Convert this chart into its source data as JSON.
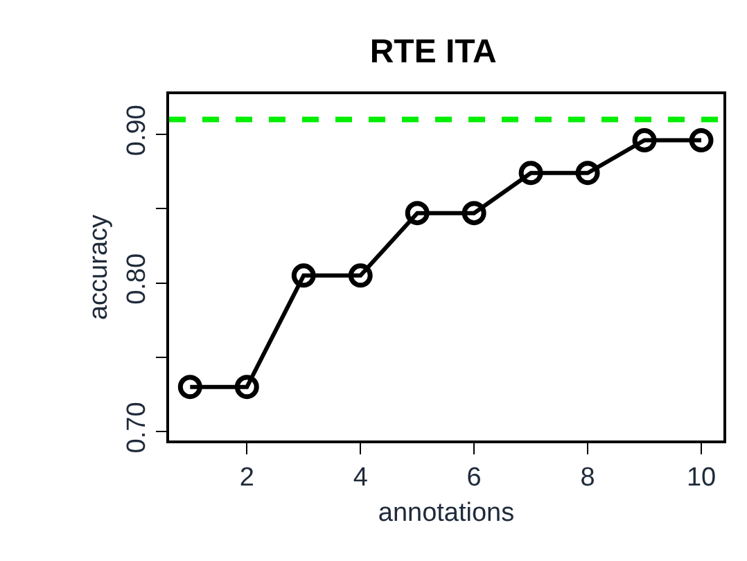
{
  "chart_data": {
    "type": "line",
    "title": "RTE ITA",
    "xlabel": "annotations",
    "ylabel": "accuracy",
    "x": [
      1,
      2,
      3,
      4,
      5,
      6,
      7,
      8,
      9,
      10
    ],
    "series": [
      {
        "color": "#000000",
        "values": [
          0.73,
          0.73,
          0.805,
          0.805,
          0.847,
          0.847,
          0.874,
          0.874,
          0.896,
          0.896
        ]
      }
    ],
    "marker": "circle",
    "line_style": "solid",
    "xlim": [
      0.63,
      10.39
    ],
    "xticks": [
      2,
      4,
      6,
      8,
      10
    ],
    "ylim": [
      0.694,
      0.927
    ],
    "yticks": [
      {
        "value": 0.7,
        "label": "0.70"
      },
      {
        "value": 0.75,
        "label": null
      },
      {
        "value": 0.8,
        "label": "0.80"
      },
      {
        "value": 0.85,
        "label": null
      },
      {
        "value": 0.9,
        "label": "0.90"
      }
    ],
    "ref_lines": [
      {
        "axis": "y",
        "value": 0.91,
        "color": "#00ee00",
        "line_style": "dashed"
      }
    ]
  }
}
